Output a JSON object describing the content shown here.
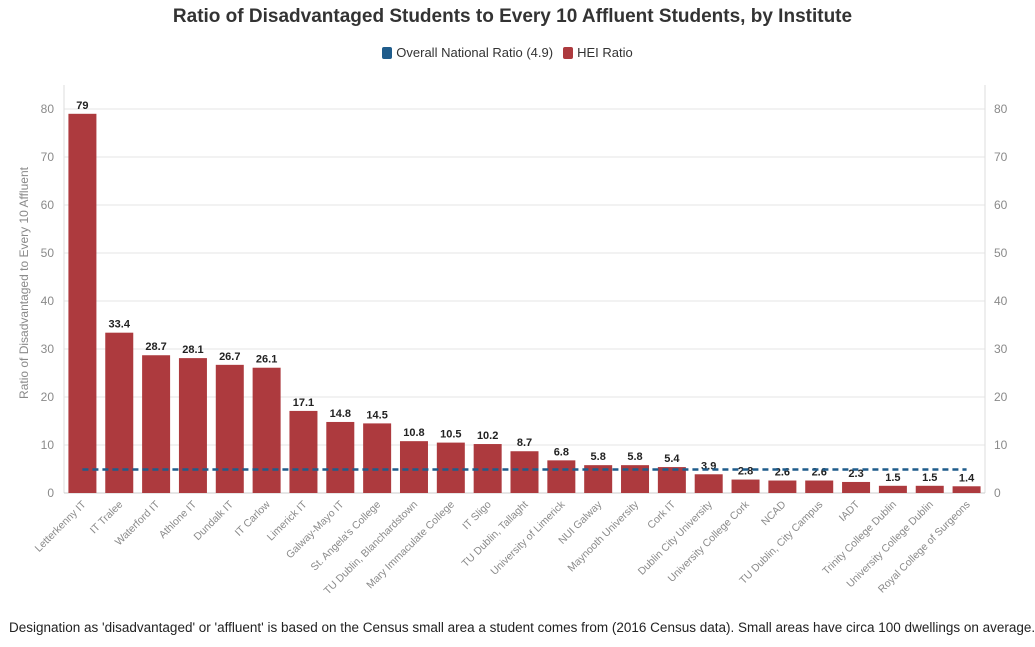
{
  "chart_data": {
    "type": "bar",
    "title": "Ratio of Disadvantaged Students to Every 10 Affluent Students, by Institute",
    "ylabel": "Ratio of Disadvantaged to Every 10 Affluent",
    "ylim": [
      0,
      85
    ],
    "yticks": [
      0,
      10,
      20,
      30,
      40,
      50,
      60,
      70,
      80
    ],
    "y_tick_labels": [
      "0",
      "10",
      "20",
      "30",
      "40",
      "50",
      "60",
      "70",
      "80"
    ],
    "secondary_axis": true,
    "grid": true,
    "legend": {
      "placement": "top-center",
      "entries": [
        {
          "name": "Overall National Ratio (4.9)",
          "color": "#1f5c8b"
        },
        {
          "name": "HEI Ratio",
          "color": "#ad3a3e"
        }
      ]
    },
    "categories": [
      "Letterkenny IT",
      "IT Tralee",
      "Waterford IT",
      "Athlone IT",
      "Dundalk IT",
      "IT Carlow",
      "Limerick IT",
      "Galway-Mayo IT",
      "St. Angela's College",
      "TU Dublin, Blanchardstown",
      "Mary Immaculate College",
      "IT Sligo",
      "TU Dublin, Tallaght",
      "University of Limerick",
      "NUI Galway",
      "Maynooth University",
      "Cork IT",
      "Dublin City University",
      "University College Cork",
      "NCAD",
      "TU Dublin, City Campus",
      "IADT",
      "Trinity College Dublin",
      "University College Dublin",
      "Royal College of Surgeons"
    ],
    "series": [
      {
        "name": "HEI Ratio",
        "type": "bar",
        "color": "#ad3a3e",
        "values": [
          79,
          33.4,
          28.7,
          28.1,
          26.7,
          26.1,
          17.1,
          14.8,
          14.5,
          10.8,
          10.5,
          10.2,
          8.7,
          6.8,
          5.8,
          5.8,
          5.4,
          3.9,
          2.8,
          2.6,
          2.6,
          2.3,
          1.5,
          1.5,
          1.4
        ],
        "labels": [
          "79",
          "33.4",
          "28.7",
          "28.1",
          "26.7",
          "26.1",
          "17.1",
          "14.8",
          "14.5",
          "10.8",
          "10.5",
          "10.2",
          "8.7",
          "6.8",
          "5.8",
          "5.8",
          "5.4",
          "3.9",
          "2.8",
          "2.6",
          "2.6",
          "2.3",
          "1.5",
          "1.5",
          "1.4"
        ]
      },
      {
        "name": "Overall National Ratio (4.9)",
        "type": "line",
        "style": "dashed",
        "color": "#1f5c8b",
        "value": 4.9
      }
    ]
  },
  "footnote": "Designation as 'disadvantaged' or 'affluent' is based on the Census small area a student comes from (2016 Census data). Small areas have circa 100 dwellings on average."
}
